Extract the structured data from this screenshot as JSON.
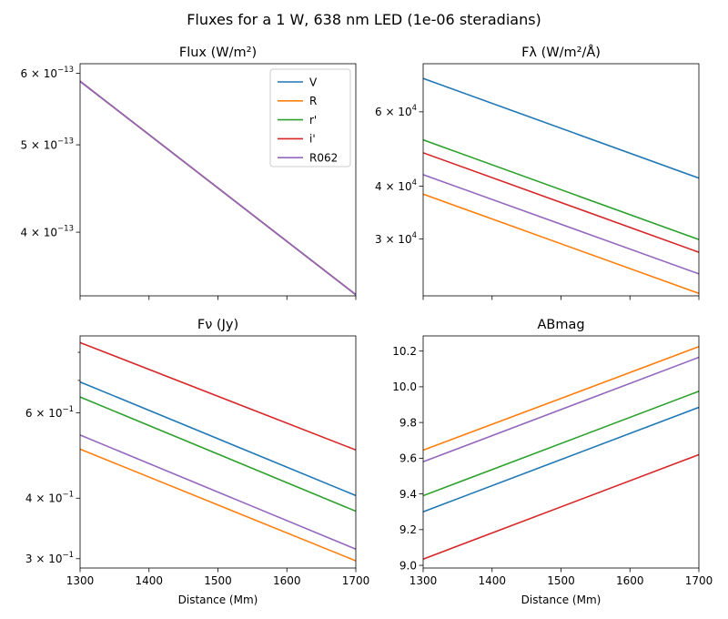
{
  "figure": {
    "suptitle": "Fluxes for a 1 W, 638 nm LED (1e-06 steradians)"
  },
  "colors": {
    "V": "#1f77b4",
    "R": "#ff7f0e",
    "r'": "#2ca02c",
    "i'": "#d62728",
    "R062": "#9467bd"
  },
  "chart_data": [
    {
      "id": "flux",
      "type": "line",
      "title": "Flux (W/m²)",
      "xlabel": "",
      "ylabel": "",
      "yscale": "log",
      "xlim": [
        1300,
        1700
      ],
      "ylim": [
        3.4e-13,
        6.15e-13
      ],
      "xticks_labeled": false,
      "yticks": [
        {
          "value": 6e-13,
          "mant": "6",
          "exp": "−13"
        },
        {
          "value": 5e-13,
          "mant": "5",
          "exp": "−13"
        },
        {
          "value": 4e-13,
          "mant": "4",
          "exp": "−13"
        }
      ],
      "legend": {
        "placement": "upper-right",
        "entries": [
          "V",
          "R",
          "r'",
          "i'",
          "R062"
        ]
      },
      "series": [
        {
          "name": "V",
          "x": [
            1300,
            1700
          ],
          "y": [
            5.88e-13,
            3.41e-13
          ]
        },
        {
          "name": "R",
          "x": [
            1300,
            1700
          ],
          "y": [
            5.88e-13,
            3.41e-13
          ]
        },
        {
          "name": "r'",
          "x": [
            1300,
            1700
          ],
          "y": [
            5.88e-13,
            3.41e-13
          ]
        },
        {
          "name": "i'",
          "x": [
            1300,
            1700
          ],
          "y": [
            5.88e-13,
            3.41e-13
          ]
        },
        {
          "name": "R062",
          "x": [
            1300,
            1700
          ],
          "y": [
            5.88e-13,
            3.41e-13
          ]
        }
      ]
    },
    {
      "id": "flambda",
      "type": "line",
      "title": "Fλ (W/m²/Å)",
      "xlabel": "",
      "ylabel": "",
      "yscale": "log",
      "xlim": [
        1300,
        1700
      ],
      "ylim": [
        22000,
        78000
      ],
      "xticks_labeled": false,
      "yticks": [
        {
          "value": 60000,
          "mant": "6",
          "exp": "4"
        },
        {
          "value": 40000,
          "mant": "4",
          "exp": "4"
        },
        {
          "value": 30000,
          "mant": "3",
          "exp": "4"
        }
      ],
      "series": [
        {
          "name": "V",
          "x": [
            1300,
            1700
          ],
          "y": [
            72000,
            41800
          ]
        },
        {
          "name": "R",
          "x": [
            1300,
            1700
          ],
          "y": [
            38300,
            22300
          ]
        },
        {
          "name": "r'",
          "x": [
            1300,
            1700
          ],
          "y": [
            51500,
            29900
          ]
        },
        {
          "name": "i'",
          "x": [
            1300,
            1700
          ],
          "y": [
            48000,
            27900
          ]
        },
        {
          "name": "R062",
          "x": [
            1300,
            1700
          ],
          "y": [
            42600,
            24800
          ]
        }
      ]
    },
    {
      "id": "fnu",
      "type": "line",
      "title": "Fν (Jy)",
      "xlabel": "Distance (Mm)",
      "ylabel": "",
      "yscale": "log",
      "xlim": [
        1300,
        1700
      ],
      "ylim": [
        0.287,
        0.865
      ],
      "xticks_labeled": true,
      "xticks": [
        1300,
        1400,
        1500,
        1600,
        1700
      ],
      "yticks": [
        {
          "value": 0.6,
          "mant": "6",
          "exp": "−1"
        },
        {
          "value": 0.4,
          "mant": "4",
          "exp": "−1"
        },
        {
          "value": 0.3,
          "mant": "3",
          "exp": "−1"
        }
      ],
      "minor_yticks": [
        0.7,
        0.8
      ],
      "series": [
        {
          "name": "V",
          "x": [
            1300,
            1700
          ],
          "y": [
            0.695,
            0.405
          ]
        },
        {
          "name": "R",
          "x": [
            1300,
            1700
          ],
          "y": [
            0.505,
            0.297
          ]
        },
        {
          "name": "r'",
          "x": [
            1300,
            1700
          ],
          "y": [
            0.647,
            0.376
          ]
        },
        {
          "name": "i'",
          "x": [
            1300,
            1700
          ],
          "y": [
            0.838,
            0.503
          ]
        },
        {
          "name": "R062",
          "x": [
            1300,
            1700
          ],
          "y": [
            0.54,
            0.314
          ]
        }
      ]
    },
    {
      "id": "abmag",
      "type": "line",
      "title": "ABmag",
      "xlabel": "Distance (Mm)",
      "ylabel": "",
      "yscale": "linear",
      "xlim": [
        1300,
        1700
      ],
      "ylim": [
        8.985,
        10.285
      ],
      "xticks_labeled": true,
      "xticks": [
        1300,
        1400,
        1500,
        1600,
        1700
      ],
      "yticks": [
        {
          "value": 9.0,
          "label": "9.0"
        },
        {
          "value": 9.2,
          "label": "9.2"
        },
        {
          "value": 9.4,
          "label": "9.4"
        },
        {
          "value": 9.6,
          "label": "9.6"
        },
        {
          "value": 9.8,
          "label": "9.8"
        },
        {
          "value": 10.0,
          "label": "10.0"
        },
        {
          "value": 10.2,
          "label": "10.2"
        }
      ],
      "series": [
        {
          "name": "V",
          "x": [
            1300,
            1700
          ],
          "y": [
            9.3,
            9.885
          ]
        },
        {
          "name": "R",
          "x": [
            1300,
            1700
          ],
          "y": [
            9.645,
            10.225
          ]
        },
        {
          "name": "r'",
          "x": [
            1300,
            1700
          ],
          "y": [
            9.39,
            9.975
          ]
        },
        {
          "name": "i'",
          "x": [
            1300,
            1700
          ],
          "y": [
            9.035,
            9.62
          ]
        },
        {
          "name": "R062",
          "x": [
            1300,
            1700
          ],
          "y": [
            9.58,
            10.165
          ]
        }
      ]
    }
  ]
}
